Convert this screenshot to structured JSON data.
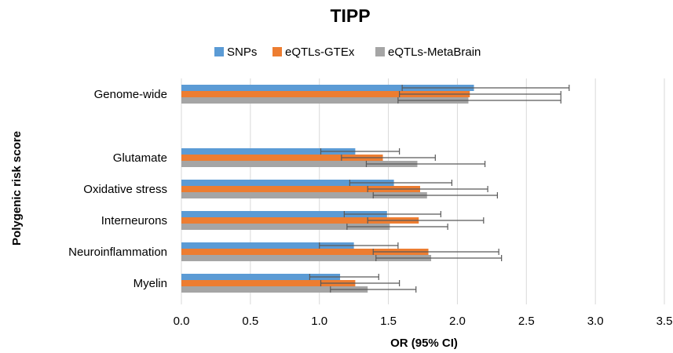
{
  "chart_data": {
    "type": "bar",
    "orientation": "horizontal",
    "title": "TIPP",
    "xlabel": "OR (95% CI)",
    "ylabel": "Polygenic risk score",
    "xlim": [
      0,
      3.5
    ],
    "xticks": [
      0.0,
      0.5,
      1.0,
      1.5,
      2.0,
      2.5,
      3.0,
      3.5
    ],
    "xtick_labels": [
      "0.0",
      "0.5",
      "1.0",
      "1.5",
      "2.0",
      "2.5",
      "3.0",
      "3.5"
    ],
    "grid": "vertical",
    "legend_position": "top",
    "categories": [
      "Genome-wide",
      "Glutamate",
      "Oxidative stress",
      "Interneurons",
      "Neuroinflammation",
      "Myelin"
    ],
    "series": [
      {
        "name": "SNPs",
        "color": "#5b9bd5",
        "values": [
          2.12,
          1.26,
          1.54,
          1.49,
          1.25,
          1.15
        ],
        "ci_low": [
          1.6,
          1.01,
          1.22,
          1.18,
          1.0,
          0.93
        ],
        "ci_high": [
          2.81,
          1.58,
          1.96,
          1.88,
          1.57,
          1.43
        ]
      },
      {
        "name": "eQTLs-GTEx",
        "color": "#ed7d31",
        "values": [
          2.09,
          1.46,
          1.73,
          1.72,
          1.79,
          1.26
        ],
        "ci_low": [
          1.58,
          1.16,
          1.35,
          1.35,
          1.39,
          1.01
        ],
        "ci_high": [
          2.75,
          1.84,
          2.22,
          2.19,
          2.3,
          1.58
        ]
      },
      {
        "name": "eQTLs-MetaBrain",
        "color": "#a5a5a5",
        "values": [
          2.08,
          1.71,
          1.78,
          1.51,
          1.81,
          1.35
        ],
        "ci_low": [
          1.57,
          1.34,
          1.39,
          1.2,
          1.41,
          1.08
        ],
        "ci_high": [
          2.75,
          2.2,
          2.29,
          1.93,
          2.32,
          1.7
        ]
      }
    ]
  }
}
